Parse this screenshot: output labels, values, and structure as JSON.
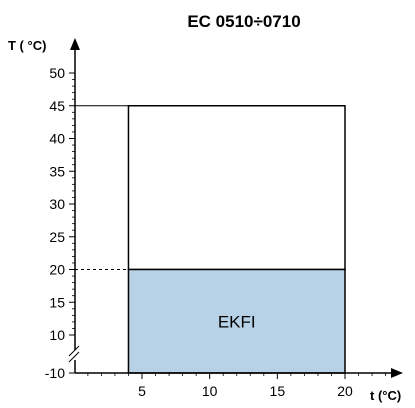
{
  "chart_data": {
    "type": "area",
    "title": "EC 0510÷0710",
    "xlabel": "t (°C)",
    "ylabel": "T ( °C)",
    "x_ticks": [
      "5",
      "10",
      "15",
      "20"
    ],
    "y_ticks": [
      "-10",
      "10",
      "15",
      "20",
      "25",
      "30",
      "35",
      "40",
      "45",
      "50"
    ],
    "y_axis_break": true,
    "xlim": [
      4,
      20
    ],
    "ylim_display": [
      -10,
      50
    ],
    "regions": [
      {
        "name": "",
        "x": [
          4,
          20
        ],
        "y": [
          20,
          45
        ],
        "fill": "#ffffff"
      },
      {
        "name": "EKFI",
        "x": [
          4,
          20
        ],
        "y": [
          -10,
          20
        ],
        "fill": "#b7d2e6"
      }
    ],
    "reference_lines": [
      {
        "y": 45,
        "style": "solid"
      },
      {
        "y": 20,
        "style": "dashed"
      }
    ],
    "colors": {
      "axis": "#000000",
      "region_fill": "#b7d2e6",
      "outline": "#000000"
    }
  }
}
